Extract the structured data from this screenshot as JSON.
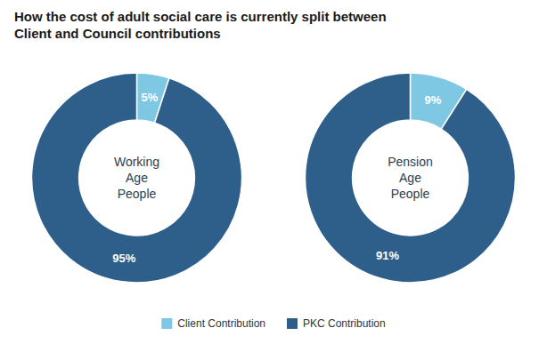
{
  "chart_data": [
    {
      "type": "pie",
      "title": "How the cost of adult social care is currently split between\nClient and Council contributions",
      "annotations": [
        "Working\nAge\nPeople"
      ],
      "categories": [
        "Client Contribution",
        "PKC Contribution"
      ],
      "values": [
        5,
        95
      ],
      "value_labels": [
        "5%",
        "95%"
      ],
      "colors": [
        "#7ec8e3",
        "#2e5f8a"
      ],
      "data_labels": true,
      "legend": "bottom"
    },
    {
      "type": "pie",
      "annotations": [
        "Pension\nAge\nPeople"
      ],
      "categories": [
        "Client Contribution",
        "PKC Contribution"
      ],
      "values": [
        9,
        91
      ],
      "value_labels": [
        "9%",
        "91%"
      ],
      "colors": [
        "#7ec8e3",
        "#2e5f8a"
      ],
      "data_labels": true,
      "legend": "bottom"
    }
  ]
}
